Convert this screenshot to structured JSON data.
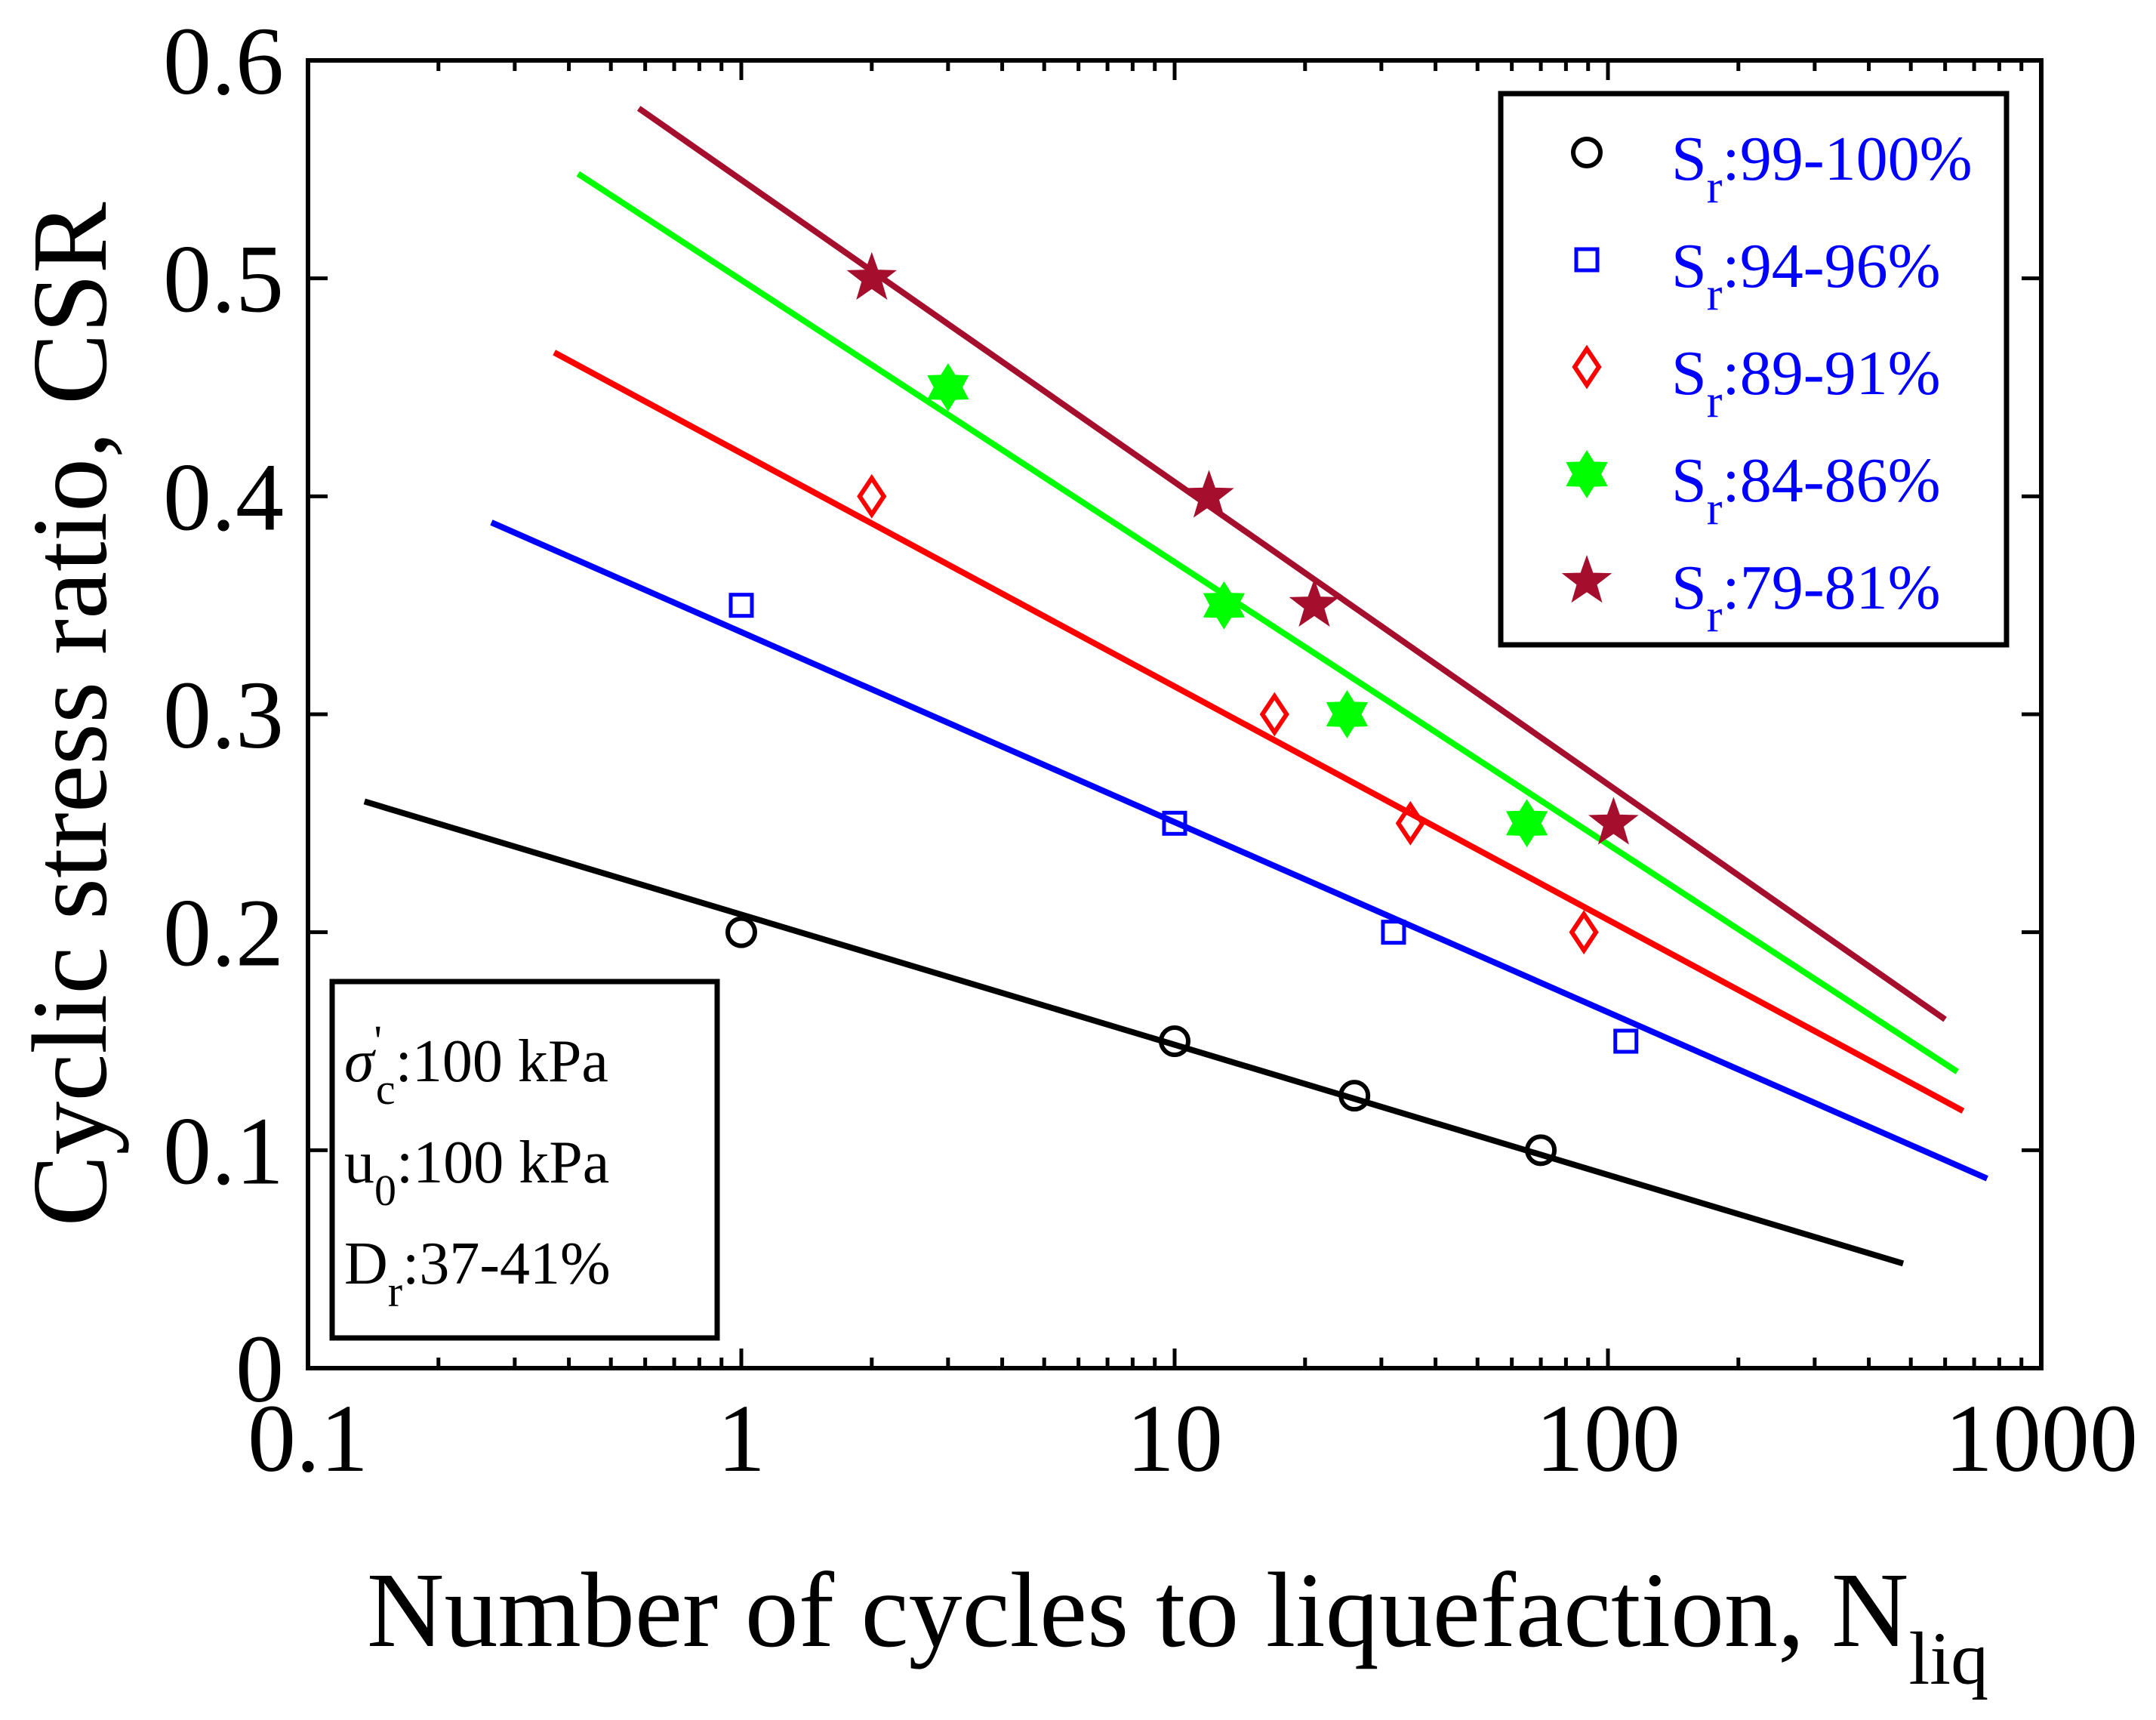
{
  "chart_data": {
    "type": "scatter",
    "title": "",
    "xlabel": "Number of cycles to liquefaction, N",
    "xlabel_sub": "liq",
    "ylabel": "Cyclic stress ratio, CSR",
    "xscale": "log",
    "xlim": [
      0.1,
      1000
    ],
    "ylim": [
      0,
      0.6
    ],
    "x_ticks": [
      0.1,
      1,
      10,
      100,
      1000
    ],
    "x_tick_labels": [
      "0.1",
      "1",
      "10",
      "100",
      "1000"
    ],
    "y_ticks": [
      0,
      0.1,
      0.2,
      0.3,
      0.4,
      0.5,
      0.6
    ],
    "y_tick_labels": [
      "0",
      "0.1",
      "0.2",
      "0.3",
      "0.4",
      "0.5",
      "0.6"
    ],
    "legend_position": "top-right",
    "series": [
      {
        "name": "Sr:99-100%",
        "legend_main": "S",
        "legend_sub": "r",
        "legend_rest": ":99-100%",
        "color": "#000000",
        "marker": "circle",
        "x": [
          1,
          10,
          26,
          70
        ],
        "y": [
          0.2,
          0.15,
          0.125,
          0.1
        ],
        "fit": {
          "x": [
            0.135,
            480
          ],
          "y": [
            0.26,
            0.048
          ]
        }
      },
      {
        "name": "Sr:94-96%",
        "legend_main": "S",
        "legend_sub": "r",
        "legend_rest": ":94-96%",
        "color": "#0000ff",
        "marker": "square",
        "x": [
          1,
          10,
          32,
          110
        ],
        "y": [
          0.35,
          0.25,
          0.2,
          0.15
        ],
        "fit": {
          "x": [
            0.265,
            750
          ],
          "y": [
            0.388,
            0.087
          ]
        }
      },
      {
        "name": "Sr:89-91%",
        "legend_main": "S",
        "legend_sub": "r",
        "legend_rest": ":89-91%",
        "color": "#ff0000",
        "marker": "diamond",
        "x": [
          2,
          17,
          35,
          88
        ],
        "y": [
          0.4,
          0.3,
          0.25,
          0.2
        ],
        "fit": {
          "x": [
            0.37,
            660
          ],
          "y": [
            0.466,
            0.118
          ]
        }
      },
      {
        "name": "Sr:84-86%",
        "legend_main": "S",
        "legend_sub": "r",
        "legend_rest": ":84-86%",
        "color": "#00ff00",
        "marker": "hexagram",
        "x": [
          3,
          13,
          25,
          65
        ],
        "y": [
          0.45,
          0.35,
          0.3,
          0.25
        ],
        "fit": {
          "x": [
            0.42,
            640
          ],
          "y": [
            0.548,
            0.136
          ]
        }
      },
      {
        "name": "Sr:79-81%",
        "legend_main": "S",
        "legend_sub": "r",
        "legend_rest": ":79-81%",
        "color": "#a50f2d",
        "marker": "pentagram",
        "x": [
          2,
          12,
          21,
          103
        ],
        "y": [
          0.5,
          0.4,
          0.35,
          0.25
        ],
        "fit": {
          "x": [
            0.58,
            600
          ],
          "y": [
            0.578,
            0.16
          ]
        }
      }
    ],
    "annotation": [
      {
        "main": "σ",
        "prime": "'",
        "sub": "c",
        "rest": ":100 kPa"
      },
      {
        "main": "u",
        "prime": "",
        "sub": "0",
        "rest": ":100 kPa"
      },
      {
        "main": "D",
        "prime": "",
        "sub": "r",
        "rest": ":37-41%"
      }
    ]
  }
}
